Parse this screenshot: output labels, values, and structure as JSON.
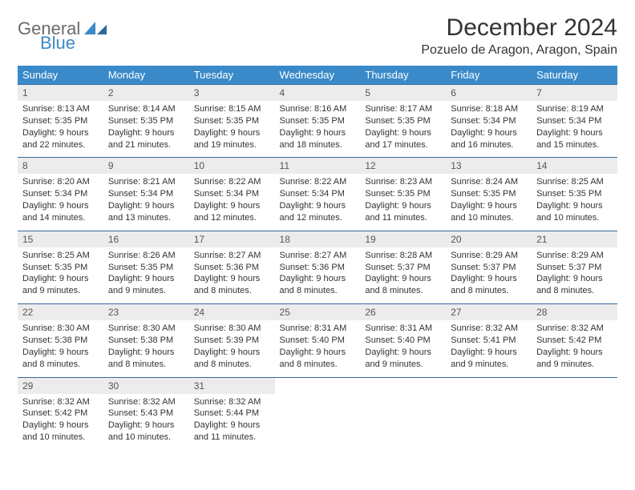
{
  "logo": {
    "word1": "General",
    "word2": "Blue"
  },
  "title": "December 2024",
  "location": "Pozuelo de Aragon, Aragon, Spain",
  "colors": {
    "header_bg": "#3a8ac9",
    "header_text": "#ffffff",
    "daynum_bg": "#ececec",
    "rule": "#3a6a9a",
    "body_text": "#333333",
    "logo_gray": "#6a6a6a",
    "logo_blue": "#3a8ac9"
  },
  "weekdays": [
    "Sunday",
    "Monday",
    "Tuesday",
    "Wednesday",
    "Thursday",
    "Friday",
    "Saturday"
  ],
  "weeks": [
    [
      {
        "n": "1",
        "sr": "8:13 AM",
        "ss": "5:35 PM",
        "dl": "9 hours and 22 minutes."
      },
      {
        "n": "2",
        "sr": "8:14 AM",
        "ss": "5:35 PM",
        "dl": "9 hours and 21 minutes."
      },
      {
        "n": "3",
        "sr": "8:15 AM",
        "ss": "5:35 PM",
        "dl": "9 hours and 19 minutes."
      },
      {
        "n": "4",
        "sr": "8:16 AM",
        "ss": "5:35 PM",
        "dl": "9 hours and 18 minutes."
      },
      {
        "n": "5",
        "sr": "8:17 AM",
        "ss": "5:35 PM",
        "dl": "9 hours and 17 minutes."
      },
      {
        "n": "6",
        "sr": "8:18 AM",
        "ss": "5:34 PM",
        "dl": "9 hours and 16 minutes."
      },
      {
        "n": "7",
        "sr": "8:19 AM",
        "ss": "5:34 PM",
        "dl": "9 hours and 15 minutes."
      }
    ],
    [
      {
        "n": "8",
        "sr": "8:20 AM",
        "ss": "5:34 PM",
        "dl": "9 hours and 14 minutes."
      },
      {
        "n": "9",
        "sr": "8:21 AM",
        "ss": "5:34 PM",
        "dl": "9 hours and 13 minutes."
      },
      {
        "n": "10",
        "sr": "8:22 AM",
        "ss": "5:34 PM",
        "dl": "9 hours and 12 minutes."
      },
      {
        "n": "11",
        "sr": "8:22 AM",
        "ss": "5:34 PM",
        "dl": "9 hours and 12 minutes."
      },
      {
        "n": "12",
        "sr": "8:23 AM",
        "ss": "5:35 PM",
        "dl": "9 hours and 11 minutes."
      },
      {
        "n": "13",
        "sr": "8:24 AM",
        "ss": "5:35 PM",
        "dl": "9 hours and 10 minutes."
      },
      {
        "n": "14",
        "sr": "8:25 AM",
        "ss": "5:35 PM",
        "dl": "9 hours and 10 minutes."
      }
    ],
    [
      {
        "n": "15",
        "sr": "8:25 AM",
        "ss": "5:35 PM",
        "dl": "9 hours and 9 minutes."
      },
      {
        "n": "16",
        "sr": "8:26 AM",
        "ss": "5:35 PM",
        "dl": "9 hours and 9 minutes."
      },
      {
        "n": "17",
        "sr": "8:27 AM",
        "ss": "5:36 PM",
        "dl": "9 hours and 8 minutes."
      },
      {
        "n": "18",
        "sr": "8:27 AM",
        "ss": "5:36 PM",
        "dl": "9 hours and 8 minutes."
      },
      {
        "n": "19",
        "sr": "8:28 AM",
        "ss": "5:37 PM",
        "dl": "9 hours and 8 minutes."
      },
      {
        "n": "20",
        "sr": "8:29 AM",
        "ss": "5:37 PM",
        "dl": "9 hours and 8 minutes."
      },
      {
        "n": "21",
        "sr": "8:29 AM",
        "ss": "5:37 PM",
        "dl": "9 hours and 8 minutes."
      }
    ],
    [
      {
        "n": "22",
        "sr": "8:30 AM",
        "ss": "5:38 PM",
        "dl": "9 hours and 8 minutes."
      },
      {
        "n": "23",
        "sr": "8:30 AM",
        "ss": "5:38 PM",
        "dl": "9 hours and 8 minutes."
      },
      {
        "n": "24",
        "sr": "8:30 AM",
        "ss": "5:39 PM",
        "dl": "9 hours and 8 minutes."
      },
      {
        "n": "25",
        "sr": "8:31 AM",
        "ss": "5:40 PM",
        "dl": "9 hours and 8 minutes."
      },
      {
        "n": "26",
        "sr": "8:31 AM",
        "ss": "5:40 PM",
        "dl": "9 hours and 9 minutes."
      },
      {
        "n": "27",
        "sr": "8:32 AM",
        "ss": "5:41 PM",
        "dl": "9 hours and 9 minutes."
      },
      {
        "n": "28",
        "sr": "8:32 AM",
        "ss": "5:42 PM",
        "dl": "9 hours and 9 minutes."
      }
    ],
    [
      {
        "n": "29",
        "sr": "8:32 AM",
        "ss": "5:42 PM",
        "dl": "9 hours and 10 minutes."
      },
      {
        "n": "30",
        "sr": "8:32 AM",
        "ss": "5:43 PM",
        "dl": "9 hours and 10 minutes."
      },
      {
        "n": "31",
        "sr": "8:32 AM",
        "ss": "5:44 PM",
        "dl": "9 hours and 11 minutes."
      },
      null,
      null,
      null,
      null
    ]
  ]
}
